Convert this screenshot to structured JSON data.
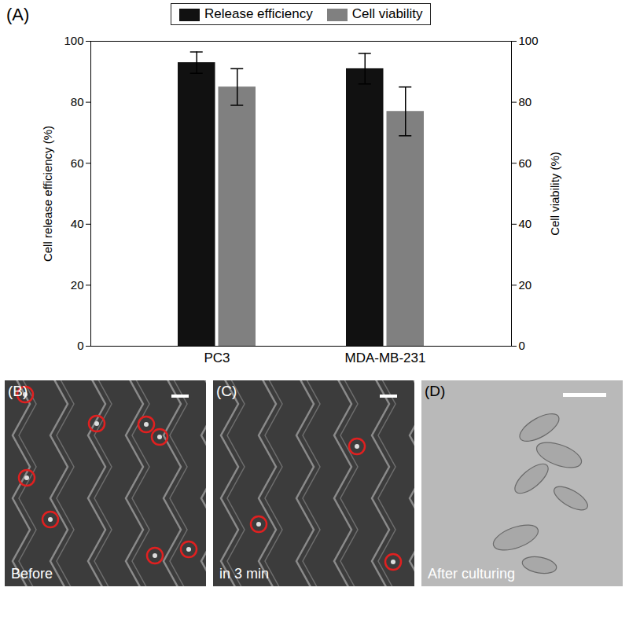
{
  "chart_data": {
    "type": "bar",
    "annotations": [
      "(A)"
    ],
    "categories": [
      "PC3",
      "MDA-MB-231"
    ],
    "series": [
      {
        "name": "Release efficiency",
        "color": "#111111",
        "values": [
          93,
          91
        ],
        "errors": [
          3.5,
          5
        ]
      },
      {
        "name": "Cell viability",
        "color": "#808080",
        "values": [
          85,
          77
        ],
        "errors": [
          6,
          8
        ],
        "axis": "y2"
      }
    ],
    "y_label": "Cell release efficiency (%)",
    "y2_label": "Cell viability (%)",
    "ylim": [
      0,
      100
    ],
    "yticks": [
      0,
      20,
      40,
      60,
      80,
      100
    ],
    "y2lim": [
      0,
      100
    ],
    "y2ticks": [
      0,
      20,
      40,
      60,
      80,
      100
    ],
    "legend": "top"
  },
  "images": [
    {
      "label": "(B)",
      "caption": "Before"
    },
    {
      "label": "(C)",
      "caption": "in 3 min"
    },
    {
      "label": "(D)",
      "caption": "After culturing"
    }
  ]
}
